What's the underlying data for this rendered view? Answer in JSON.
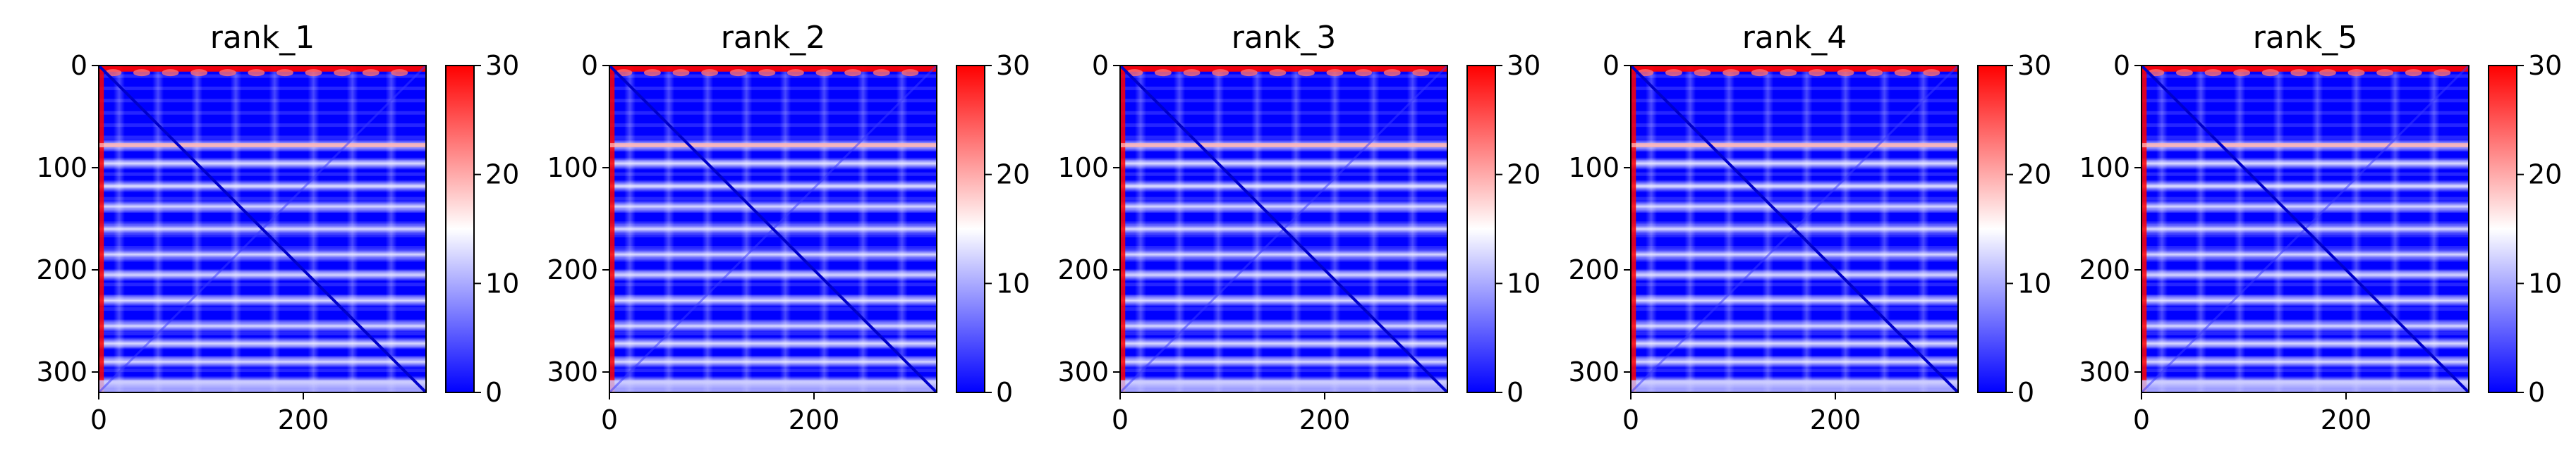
{
  "chart_data": [
    {
      "type": "heatmap",
      "title": "rank_1",
      "xlabel": "",
      "ylabel": "",
      "xlim": [
        0,
        320
      ],
      "ylim": [
        320,
        0
      ],
      "xticks": [
        0,
        200
      ],
      "yticks": [
        0,
        100,
        200,
        300
      ],
      "colorbar": {
        "min": 0,
        "max": 30,
        "ticks": [
          0,
          10,
          20,
          30
        ],
        "colormap": "bwr"
      },
      "bright_rows": [
        0,
        5,
        78,
        96,
        118,
        138,
        160,
        185,
        205,
        230,
        255,
        272,
        290,
        310
      ],
      "bright_cols": [
        0,
        5
      ]
    },
    {
      "type": "heatmap",
      "title": "rank_2",
      "xlabel": "",
      "ylabel": "",
      "xlim": [
        0,
        320
      ],
      "ylim": [
        320,
        0
      ],
      "xticks": [
        0,
        200
      ],
      "yticks": [
        0,
        100,
        200,
        300
      ],
      "colorbar": {
        "min": 0,
        "max": 30,
        "ticks": [
          0,
          10,
          20,
          30
        ],
        "colormap": "bwr"
      },
      "bright_rows": [
        0,
        5,
        78,
        96,
        118,
        138,
        160,
        185,
        205,
        230,
        255,
        272,
        290,
        310
      ],
      "bright_cols": [
        0,
        5
      ]
    },
    {
      "type": "heatmap",
      "title": "rank_3",
      "xlabel": "",
      "ylabel": "",
      "xlim": [
        0,
        320
      ],
      "ylim": [
        320,
        0
      ],
      "xticks": [
        0,
        200
      ],
      "yticks": [
        0,
        100,
        200,
        300
      ],
      "colorbar": {
        "min": 0,
        "max": 30,
        "ticks": [
          0,
          10,
          20,
          30
        ],
        "colormap": "bwr"
      },
      "bright_rows": [
        0,
        5,
        78,
        96,
        118,
        138,
        160,
        185,
        205,
        230,
        255,
        272,
        290,
        310
      ],
      "bright_cols": [
        0,
        5
      ]
    },
    {
      "type": "heatmap",
      "title": "rank_4",
      "xlabel": "",
      "ylabel": "",
      "xlim": [
        0,
        320
      ],
      "ylim": [
        320,
        0
      ],
      "xticks": [
        0,
        200
      ],
      "yticks": [
        0,
        100,
        200,
        300
      ],
      "colorbar": {
        "min": 0,
        "max": 30,
        "ticks": [
          0,
          10,
          20,
          30
        ],
        "colormap": "bwr"
      },
      "bright_rows": [
        0,
        5,
        78,
        96,
        118,
        138,
        160,
        185,
        205,
        230,
        255,
        272,
        290,
        310
      ],
      "bright_cols": [
        0,
        5
      ]
    },
    {
      "type": "heatmap",
      "title": "rank_5",
      "xlabel": "",
      "ylabel": "",
      "xlim": [
        0,
        320
      ],
      "ylim": [
        320,
        0
      ],
      "xticks": [
        0,
        200
      ],
      "yticks": [
        0,
        100,
        200,
        300
      ],
      "colorbar": {
        "min": 0,
        "max": 30,
        "ticks": [
          0,
          10,
          20,
          30
        ],
        "colormap": "bwr"
      },
      "bright_rows": [
        0,
        5,
        78,
        96,
        118,
        138,
        160,
        185,
        205,
        230,
        255,
        272,
        290,
        310
      ],
      "bright_cols": [
        0,
        5
      ]
    }
  ],
  "colors": {
    "low": "#0000ff",
    "mid": "#ffffff",
    "high": "#ff0000",
    "axis": "#000000"
  }
}
